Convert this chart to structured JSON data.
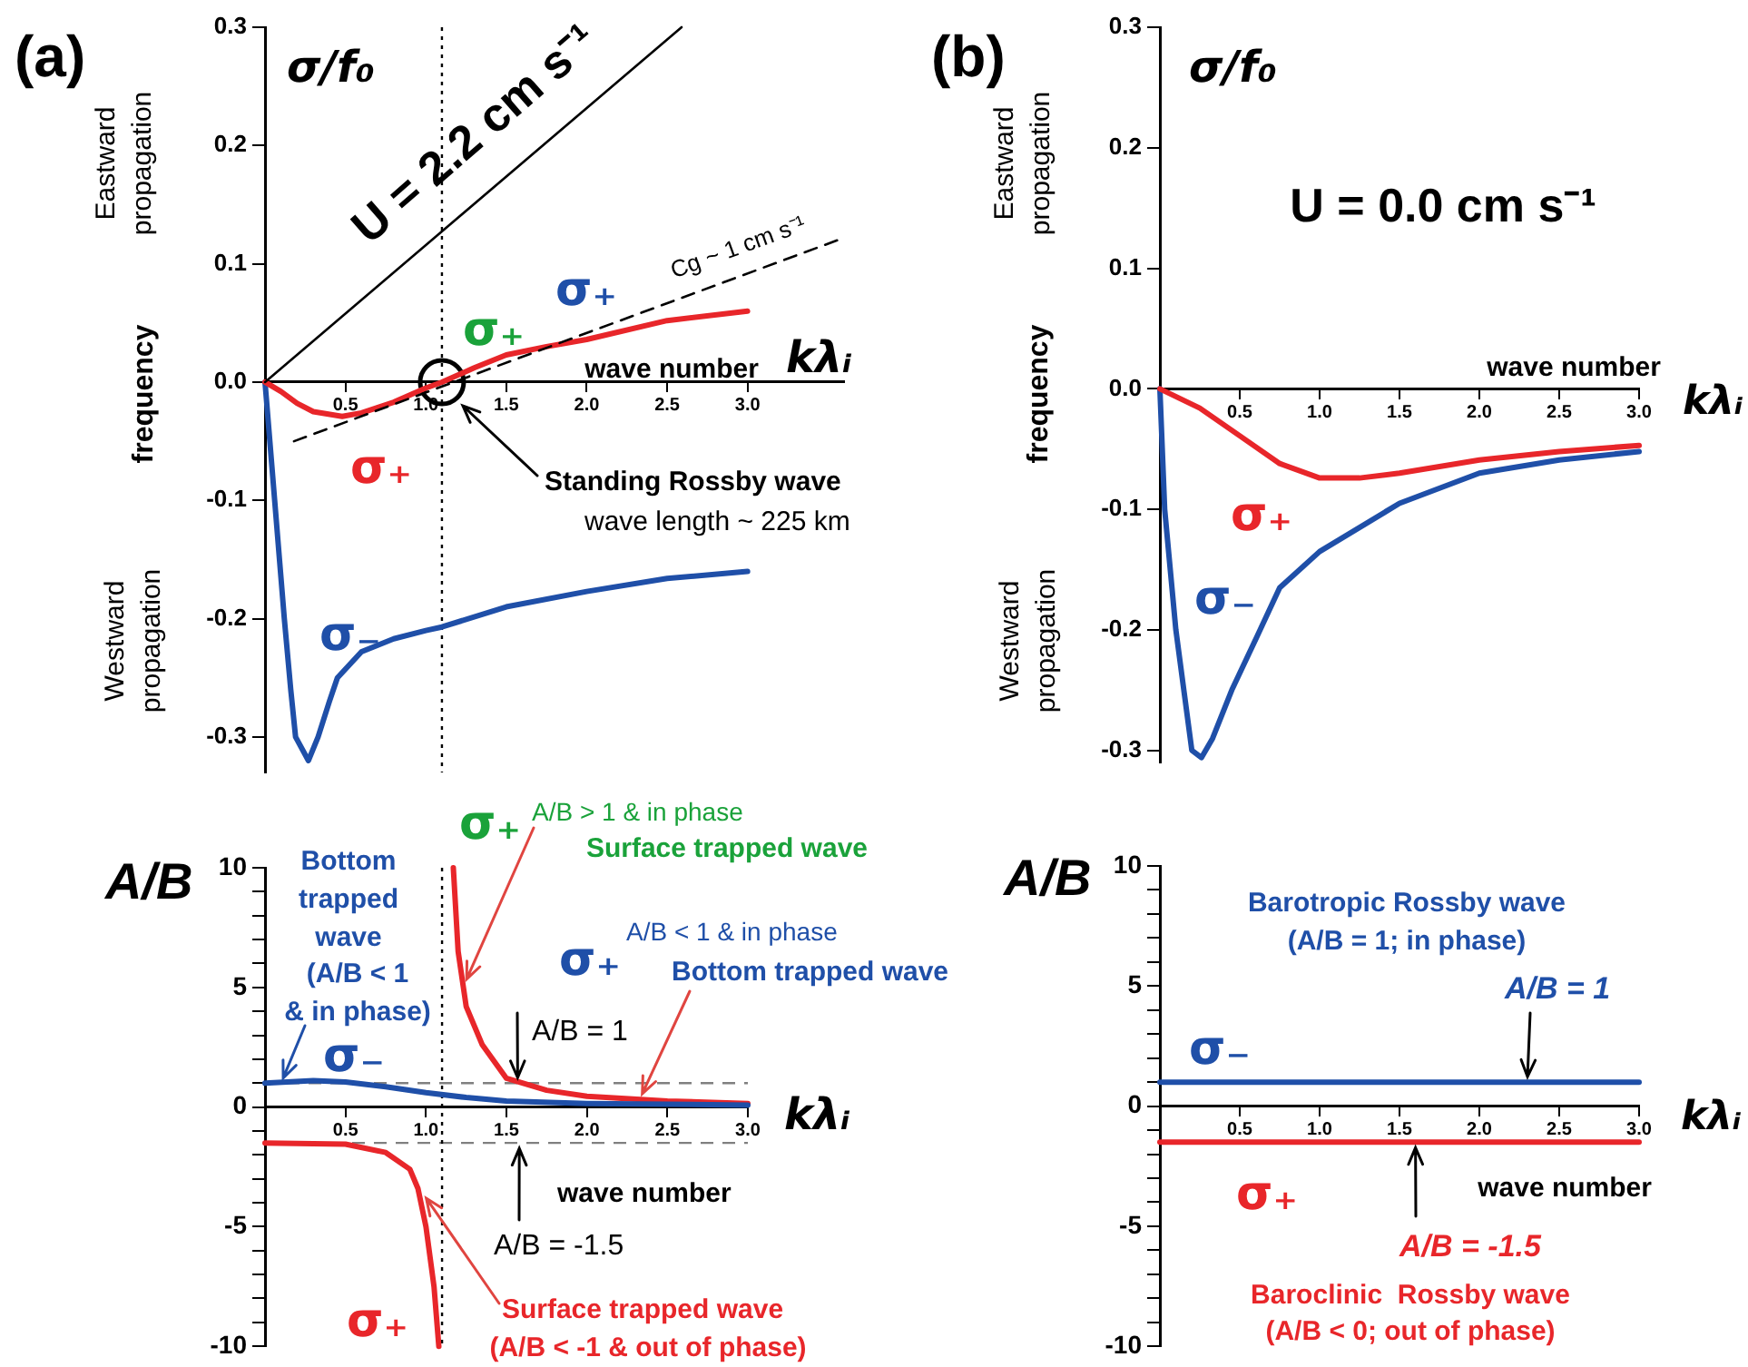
{
  "chart_data": [
    {
      "type": "line",
      "title": "(a)",
      "ylabel": "frequency",
      "xlabel": "wave number",
      "marker": "none",
      "annotations": [
        "σ/f₀",
        "Eastward propagation",
        "Westward propagation",
        "kλᵢ",
        "U = 2.2 cm s⁻¹",
        "Cg ~ 1 cm s⁻¹",
        "σ₊",
        "σ₊",
        {
          "text": "Standing Rossby wave",
          "x": 1.23,
          "y": -0.02
        },
        "wave length ~ 225 km"
      ],
      "xlim": [
        0,
        3.6
      ],
      "xticks": [
        0.5,
        {
          "value": 1,
          "label": "1.0"
        },
        1.5,
        {
          "value": 2,
          "label": "2.0"
        },
        2.5,
        {
          "value": 3,
          "label": "3.0"
        }
      ],
      "ylim": [
        -0.33,
        0.3
      ],
      "yticks": [
        -0.3,
        -0.2,
        -0.1,
        {
          "value": 0,
          "label": "0.0"
        },
        0.1,
        0.2,
        0.3
      ],
      "ref_lines": [
        {
          "axis": "x",
          "value": 1.1,
          "line_style": "dotted",
          "color": "#000000"
        }
      ],
      "series": [
        {
          "type": "line",
          "color": "#000000",
          "x": [
            0,
            2.59
          ],
          "values": [
            0,
            0.3
          ]
        },
        {
          "type": "line",
          "line_style": "dashed",
          "color": "#000000",
          "x": [
            0.18,
            3.6
          ],
          "values": [
            -0.05,
            0.122
          ]
        },
        {
          "name": "σ₊",
          "color": "#e8262a",
          "x": [
            0,
            0.1,
            0.2,
            0.3,
            0.48,
            0.6,
            0.8,
            1.0,
            1.1,
            1.3,
            1.5,
            1.75,
            2.0,
            2.5,
            3.0
          ],
          "values": [
            0,
            -0.008,
            -0.018,
            -0.025,
            -0.029,
            -0.026,
            -0.017,
            -0.005,
            0,
            0.012,
            0.023,
            0.03,
            0.036,
            0.052,
            0.06
          ]
        },
        {
          "name": "σ₋",
          "color": "#1f4fa8",
          "x": [
            0,
            0.03,
            0.06,
            0.09,
            0.12,
            0.16,
            0.19,
            0.27,
            0.33,
            0.4,
            0.45,
            0.6,
            0.8,
            1.0,
            1.1,
            1.5,
            2.0,
            2.5,
            3.0
          ],
          "values": [
            0,
            -0.05,
            -0.1,
            -0.15,
            -0.2,
            -0.26,
            -0.3,
            -0.32,
            -0.3,
            -0.27,
            -0.25,
            -0.228,
            -0.217,
            -0.21,
            -0.207,
            -0.19,
            -0.177,
            -0.166,
            -0.16
          ]
        },
        {
          "type": "scatter",
          "marker": "circle",
          "color": "#000000",
          "x": [
            1.1
          ],
          "values": [
            0
          ]
        }
      ]
    },
    {
      "type": "line",
      "ylabel": "A/B",
      "xlabel": "wave number",
      "marker": "none",
      "annotations": [
        "kλᵢ",
        "Bottom trapped wave",
        {
          "text": "(A/B < 1\n& in phase)",
          "x": 0.1,
          "y": 1
        },
        "σ₊",
        {
          "text": "A/B > 1 & in phase",
          "x": 1.23,
          "y": 5
        },
        "Surface trapped wave",
        "σ₊",
        "A/B < 1 & in phase",
        {
          "text": "Bottom trapped wave",
          "x": 2.33,
          "y": 0.35
        },
        {
          "text": "A/B = 1",
          "x": 1.57,
          "y": 1
        },
        {
          "text": "A/B = -1.5",
          "x": 1.58,
          "y": -1.5
        },
        {
          "text": "Surface trapped wave",
          "x": 0.97,
          "y": -3.5
        },
        "(A/B < -1 & out of phase)"
      ],
      "xlim": [
        0,
        3
      ],
      "xticks": [
        0.5,
        {
          "value": 1,
          "label": "1.0"
        },
        1.5,
        {
          "value": 2,
          "label": "2.0"
        },
        2.5,
        {
          "value": 3,
          "label": "3.0"
        }
      ],
      "ylim": [
        -10,
        10
      ],
      "yticks": [
        -10,
        {
          "value": -9,
          "label": null
        },
        {
          "value": -8,
          "label": null
        },
        {
          "value": -7,
          "label": null
        },
        {
          "value": -6,
          "label": null
        },
        -5,
        {
          "value": -4,
          "label": null
        },
        {
          "value": -3,
          "label": null
        },
        {
          "value": -2,
          "label": null
        },
        {
          "value": -1,
          "label": null
        },
        0,
        {
          "value": 1,
          "label": null
        },
        {
          "value": 2,
          "label": null
        },
        {
          "value": 3,
          "label": null
        },
        {
          "value": 4,
          "label": null
        },
        5,
        {
          "value": 6,
          "label": null
        },
        {
          "value": 7,
          "label": null
        },
        {
          "value": 8,
          "label": null
        },
        {
          "value": 9,
          "label": null
        },
        10
      ],
      "ref_lines": [
        {
          "axis": "y",
          "value": 1,
          "line_style": "dashed",
          "color": "#808080"
        },
        {
          "axis": "y",
          "value": -1.5,
          "line_style": "dashed",
          "color": "#808080"
        },
        {
          "axis": "x",
          "value": 1.1,
          "line_style": "dotted",
          "color": "#000000"
        }
      ],
      "series": [
        {
          "name": "σ₋",
          "color": "#1f4fa8",
          "x": [
            0,
            0.3,
            0.5,
            0.75,
            1.0,
            1.25,
            1.5,
            2.0,
            2.5,
            3.0
          ],
          "values": [
            1,
            1.1,
            1.05,
            0.85,
            0.6,
            0.4,
            0.25,
            0.15,
            0.12,
            0.08
          ]
        },
        {
          "name": "σ₊",
          "color": "#e8262a",
          "x": [
            0,
            0.5,
            0.75,
            0.9,
            0.95,
            1.0,
            1.05,
            1.08,
            1.1,
            1.17,
            1.2,
            1.25,
            1.35,
            1.5,
            1.75,
            2.0,
            2.5,
            3.0
          ],
          "values": [
            -1.5,
            -1.55,
            -1.9,
            -2.6,
            -3.4,
            -5,
            -7.5,
            -10,
            null,
            10,
            6.5,
            4.2,
            2.6,
            1.2,
            0.7,
            0.45,
            0.25,
            0.15
          ]
        }
      ]
    },
    {
      "type": "line",
      "title": "(b)",
      "ylabel": "frequency",
      "xlabel": "wave number",
      "marker": "none",
      "annotations": [
        "σ/f₀",
        "Eastward propagation",
        "Westward propagation",
        "kλᵢ",
        "U = 0.0 cm s⁻¹"
      ],
      "xlim": [
        0,
        3
      ],
      "xticks": [
        0.5,
        {
          "value": 1,
          "label": "1.0"
        },
        1.5,
        {
          "value": 2,
          "label": "2.0"
        },
        2.5,
        {
          "value": 3,
          "label": "3.0"
        }
      ],
      "ylim": [
        -0.31,
        0.3
      ],
      "yticks": [
        -0.3,
        -0.2,
        -0.1,
        {
          "value": 0,
          "label": "0.0"
        },
        0.1,
        0.2,
        0.3
      ],
      "series": [
        {
          "name": "σ₊",
          "color": "#e8262a",
          "x": [
            0,
            0.25,
            0.5,
            0.75,
            1.0,
            1.25,
            1.5,
            2.0,
            2.5,
            3.0
          ],
          "values": [
            0,
            -0.016,
            -0.039,
            -0.062,
            -0.074,
            -0.074,
            -0.07,
            -0.059,
            -0.052,
            -0.047
          ]
        },
        {
          "name": "σ₋",
          "color": "#1f4fa8",
          "x": [
            0,
            0.03,
            0.1,
            0.2,
            0.26,
            0.33,
            0.45,
            0.61,
            0.75,
            1.0,
            1.5,
            2.0,
            2.5,
            3.0
          ],
          "values": [
            0,
            -0.1,
            -0.2,
            -0.3,
            -0.306,
            -0.29,
            -0.25,
            -0.205,
            -0.165,
            -0.135,
            -0.095,
            -0.07,
            -0.059,
            -0.052
          ]
        }
      ]
    },
    {
      "type": "line",
      "ylabel": "A/B",
      "xlabel": "wave number",
      "marker": "none",
      "annotations": [
        "kλᵢ",
        "Barotropic Rossby wave",
        "(A/B = 1; in phase)",
        {
          "text": "A/B = 1",
          "x": 2.3,
          "y": 1
        },
        {
          "text": "A/B = -1.5",
          "x": 1.6,
          "y": -1.5
        },
        "Baroclinic  Rossby wave",
        "(A/B < 0; out of phase)"
      ],
      "xlim": [
        0,
        3
      ],
      "xticks": [
        0.5,
        {
          "value": 1,
          "label": "1.0"
        },
        1.5,
        {
          "value": 2,
          "label": "2.0"
        },
        2.5,
        {
          "value": 3,
          "label": "3.0"
        }
      ],
      "ylim": [
        -10,
        10
      ],
      "yticks": [
        -10,
        {
          "value": -9,
          "label": null
        },
        {
          "value": -8,
          "label": null
        },
        {
          "value": -7,
          "label": null
        },
        {
          "value": -6,
          "label": null
        },
        -5,
        {
          "value": -4,
          "label": null
        },
        {
          "value": -3,
          "label": null
        },
        {
          "value": -2,
          "label": null
        },
        {
          "value": -1,
          "label": null
        },
        0,
        {
          "value": 1,
          "label": null
        },
        {
          "value": 2,
          "label": null
        },
        {
          "value": 3,
          "label": null
        },
        {
          "value": 4,
          "label": null
        },
        5,
        {
          "value": 6,
          "label": null
        },
        {
          "value": 7,
          "label": null
        },
        {
          "value": 8,
          "label": null
        },
        {
          "value": 9,
          "label": null
        },
        10
      ],
      "series": [
        {
          "name": "σ₋",
          "color": "#1f4fa8",
          "x": [
            0,
            3
          ],
          "values": [
            1,
            1
          ]
        },
        {
          "name": "σ₊",
          "color": "#e8262a",
          "x": [
            0,
            3
          ],
          "values": [
            -1.5,
            -1.5
          ]
        }
      ]
    }
  ]
}
